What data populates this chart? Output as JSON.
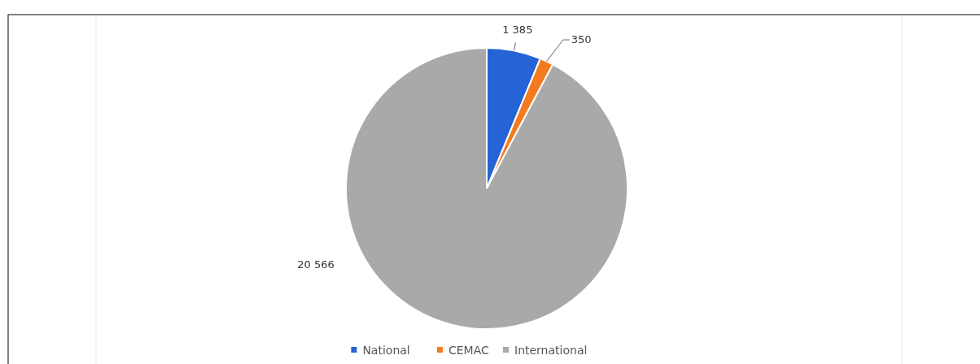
{
  "chart_data": {
    "type": "pie",
    "categories": [
      "National",
      "CEMAC",
      "International"
    ],
    "values": [
      1385,
      350,
      20566
    ],
    "colors": [
      "#2563d6",
      "#f47a1f",
      "#a9a9a9"
    ],
    "value_labels": [
      "1 385",
      "350",
      "20 566"
    ],
    "legend": "bottom"
  }
}
